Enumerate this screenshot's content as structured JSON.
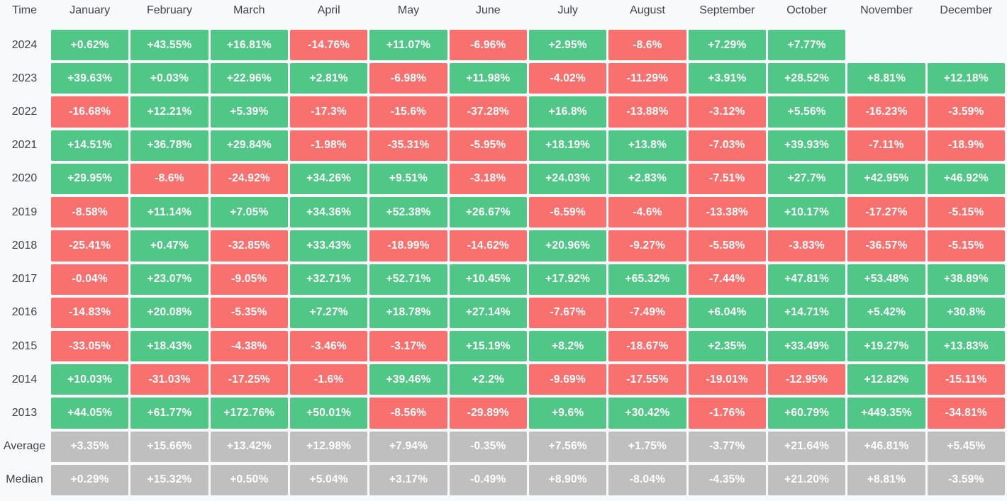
{
  "colors": {
    "positive": "#50C786",
    "negative": "#F8716F",
    "summary": "#BFBFBF",
    "background": "#F8F9FA",
    "label_text": "#3F444A",
    "cell_text": "#FFFFFF"
  },
  "chart_data": {
    "type": "heatmap",
    "columns": [
      "Time",
      "January",
      "February",
      "March",
      "April",
      "May",
      "June",
      "July",
      "August",
      "September",
      "October",
      "November",
      "December"
    ],
    "rows": [
      {
        "label": "2024",
        "summary": false,
        "values": [
          "+0.62%",
          "+43.55%",
          "+16.81%",
          "-14.76%",
          "+11.07%",
          "-6.96%",
          "+2.95%",
          "-8.6%",
          "+7.29%",
          "+7.77%",
          "",
          ""
        ]
      },
      {
        "label": "2023",
        "summary": false,
        "values": [
          "+39.63%",
          "+0.03%",
          "+22.96%",
          "+2.81%",
          "-6.98%",
          "+11.98%",
          "-4.02%",
          "-11.29%",
          "+3.91%",
          "+28.52%",
          "+8.81%",
          "+12.18%"
        ]
      },
      {
        "label": "2022",
        "summary": false,
        "values": [
          "-16.68%",
          "+12.21%",
          "+5.39%",
          "-17.3%",
          "-15.6%",
          "-37.28%",
          "+16.8%",
          "-13.88%",
          "-3.12%",
          "+5.56%",
          "-16.23%",
          "-3.59%"
        ]
      },
      {
        "label": "2021",
        "summary": false,
        "values": [
          "+14.51%",
          "+36.78%",
          "+29.84%",
          "-1.98%",
          "-35.31%",
          "-5.95%",
          "+18.19%",
          "+13.8%",
          "-7.03%",
          "+39.93%",
          "-7.11%",
          "-18.9%"
        ]
      },
      {
        "label": "2020",
        "summary": false,
        "values": [
          "+29.95%",
          "-8.6%",
          "-24.92%",
          "+34.26%",
          "+9.51%",
          "-3.18%",
          "+24.03%",
          "+2.83%",
          "-7.51%",
          "+27.7%",
          "+42.95%",
          "+46.92%"
        ]
      },
      {
        "label": "2019",
        "summary": false,
        "values": [
          "-8.58%",
          "+11.14%",
          "+7.05%",
          "+34.36%",
          "+52.38%",
          "+26.67%",
          "-6.59%",
          "-4.6%",
          "-13.38%",
          "+10.17%",
          "-17.27%",
          "-5.15%"
        ]
      },
      {
        "label": "2018",
        "summary": false,
        "values": [
          "-25.41%",
          "+0.47%",
          "-32.85%",
          "+33.43%",
          "-18.99%",
          "-14.62%",
          "+20.96%",
          "-9.27%",
          "-5.58%",
          "-3.83%",
          "-36.57%",
          "-5.15%"
        ]
      },
      {
        "label": "2017",
        "summary": false,
        "values": [
          "-0.04%",
          "+23.07%",
          "-9.05%",
          "+32.71%",
          "+52.71%",
          "+10.45%",
          "+17.92%",
          "+65.32%",
          "-7.44%",
          "+47.81%",
          "+53.48%",
          "+38.89%"
        ]
      },
      {
        "label": "2016",
        "summary": false,
        "values": [
          "-14.83%",
          "+20.08%",
          "-5.35%",
          "+7.27%",
          "+18.78%",
          "+27.14%",
          "-7.67%",
          "-7.49%",
          "+6.04%",
          "+14.71%",
          "+5.42%",
          "+30.8%"
        ]
      },
      {
        "label": "2015",
        "summary": false,
        "values": [
          "-33.05%",
          "+18.43%",
          "-4.38%",
          "-3.46%",
          "-3.17%",
          "+15.19%",
          "+8.2%",
          "-18.67%",
          "+2.35%",
          "+33.49%",
          "+19.27%",
          "+13.83%"
        ]
      },
      {
        "label": "2014",
        "summary": false,
        "values": [
          "+10.03%",
          "-31.03%",
          "-17.25%",
          "-1.6%",
          "+39.46%",
          "+2.2%",
          "-9.69%",
          "-17.55%",
          "-19.01%",
          "-12.95%",
          "+12.82%",
          "-15.11%"
        ]
      },
      {
        "label": "2013",
        "summary": false,
        "values": [
          "+44.05%",
          "+61.77%",
          "+172.76%",
          "+50.01%",
          "-8.56%",
          "-29.89%",
          "+9.6%",
          "+30.42%",
          "-1.76%",
          "+60.79%",
          "+449.35%",
          "-34.81%"
        ]
      },
      {
        "label": "Average",
        "summary": true,
        "values": [
          "+3.35%",
          "+15.66%",
          "+13.42%",
          "+12.98%",
          "+7.94%",
          "-0.35%",
          "+7.56%",
          "+1.75%",
          "-3.77%",
          "+21.64%",
          "+46.81%",
          "+5.45%"
        ]
      },
      {
        "label": "Median",
        "summary": true,
        "values": [
          "+0.29%",
          "+15.32%",
          "+0.50%",
          "+5.04%",
          "+3.17%",
          "-0.49%",
          "+8.90%",
          "-8.04%",
          "-4.35%",
          "+21.20%",
          "+8.81%",
          "-3.59%"
        ]
      }
    ]
  }
}
